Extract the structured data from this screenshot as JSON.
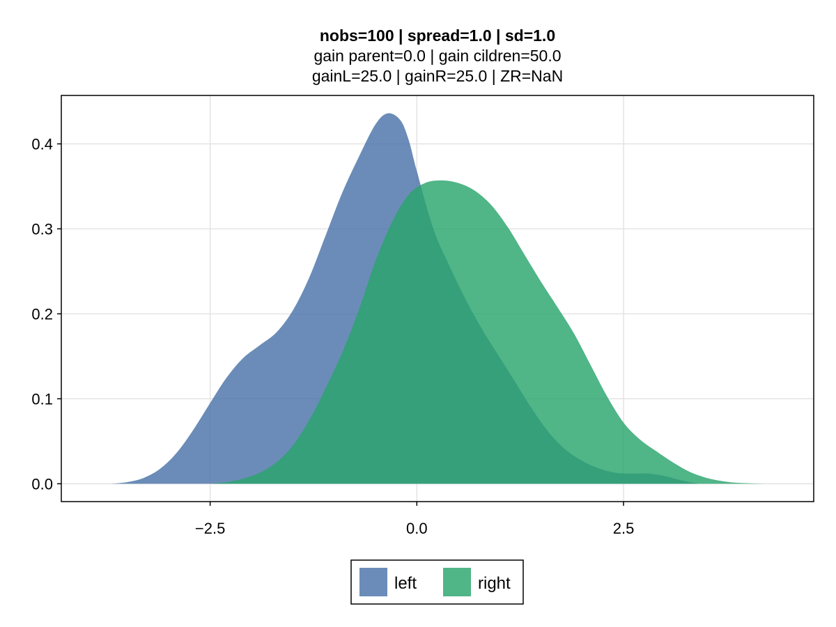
{
  "chart_data": {
    "type": "area",
    "title": "nobs=100 | spread=1.0 | sd=1.0",
    "subtitle_lines": [
      "gain parent=0.0 | gain cildren=50.0",
      "gainL=25.0 | gainR=25.0 | ZR=NaN"
    ],
    "xlabel": "",
    "ylabel": "",
    "xlim": [
      -4.3,
      4.8
    ],
    "ylim": [
      -0.021,
      0.457
    ],
    "x_ticks": [
      -2.5,
      0.0,
      2.5
    ],
    "x_tick_labels": [
      "−2.5",
      "0.0",
      "2.5"
    ],
    "y_ticks": [
      0.0,
      0.1,
      0.2,
      0.3,
      0.4
    ],
    "y_tick_labels": [
      "0.0",
      "0.1",
      "0.2",
      "0.3",
      "0.4"
    ],
    "grid": true,
    "legend_position": "bottom",
    "series": [
      {
        "name": "left",
        "color": "#4a73a8",
        "opacity": 0.82,
        "points": [
          [
            -3.7,
            0.0
          ],
          [
            -3.5,
            0.002
          ],
          [
            -3.3,
            0.007
          ],
          [
            -3.1,
            0.018
          ],
          [
            -2.9,
            0.037
          ],
          [
            -2.7,
            0.064
          ],
          [
            -2.5,
            0.095
          ],
          [
            -2.3,
            0.125
          ],
          [
            -2.1,
            0.148
          ],
          [
            -1.9,
            0.163
          ],
          [
            -1.7,
            0.178
          ],
          [
            -1.5,
            0.204
          ],
          [
            -1.3,
            0.243
          ],
          [
            -1.1,
            0.293
          ],
          [
            -0.9,
            0.343
          ],
          [
            -0.7,
            0.385
          ],
          [
            -0.5,
            0.423
          ],
          [
            -0.35,
            0.436
          ],
          [
            -0.2,
            0.428
          ],
          [
            -0.1,
            0.405
          ],
          [
            0.0,
            0.368
          ],
          [
            0.2,
            0.3
          ],
          [
            0.4,
            0.255
          ],
          [
            0.6,
            0.215
          ],
          [
            0.8,
            0.18
          ],
          [
            1.0,
            0.149
          ],
          [
            1.2,
            0.118
          ],
          [
            1.4,
            0.087
          ],
          [
            1.6,
            0.06
          ],
          [
            1.8,
            0.04
          ],
          [
            2.0,
            0.027
          ],
          [
            2.2,
            0.018
          ],
          [
            2.4,
            0.013
          ],
          [
            2.6,
            0.012
          ],
          [
            2.8,
            0.012
          ],
          [
            3.0,
            0.009
          ],
          [
            3.2,
            0.004
          ],
          [
            3.4,
            0.0
          ]
        ]
      },
      {
        "name": "right",
        "color": "#2aa56c",
        "opacity": 0.82,
        "points": [
          [
            -2.5,
            0.0
          ],
          [
            -2.3,
            0.002
          ],
          [
            -2.1,
            0.006
          ],
          [
            -1.9,
            0.013
          ],
          [
            -1.7,
            0.025
          ],
          [
            -1.5,
            0.045
          ],
          [
            -1.3,
            0.075
          ],
          [
            -1.1,
            0.113
          ],
          [
            -0.9,
            0.155
          ],
          [
            -0.7,
            0.205
          ],
          [
            -0.5,
            0.262
          ],
          [
            -0.3,
            0.308
          ],
          [
            -0.1,
            0.34
          ],
          [
            0.1,
            0.354
          ],
          [
            0.3,
            0.357
          ],
          [
            0.5,
            0.354
          ],
          [
            0.7,
            0.345
          ],
          [
            0.9,
            0.328
          ],
          [
            1.1,
            0.302
          ],
          [
            1.3,
            0.27
          ],
          [
            1.5,
            0.238
          ],
          [
            1.7,
            0.208
          ],
          [
            1.9,
            0.177
          ],
          [
            2.1,
            0.14
          ],
          [
            2.3,
            0.103
          ],
          [
            2.5,
            0.072
          ],
          [
            2.7,
            0.052
          ],
          [
            2.9,
            0.038
          ],
          [
            3.1,
            0.025
          ],
          [
            3.3,
            0.014
          ],
          [
            3.5,
            0.007
          ],
          [
            3.7,
            0.003
          ],
          [
            3.9,
            0.001
          ],
          [
            4.2,
            0.0
          ]
        ]
      }
    ]
  }
}
